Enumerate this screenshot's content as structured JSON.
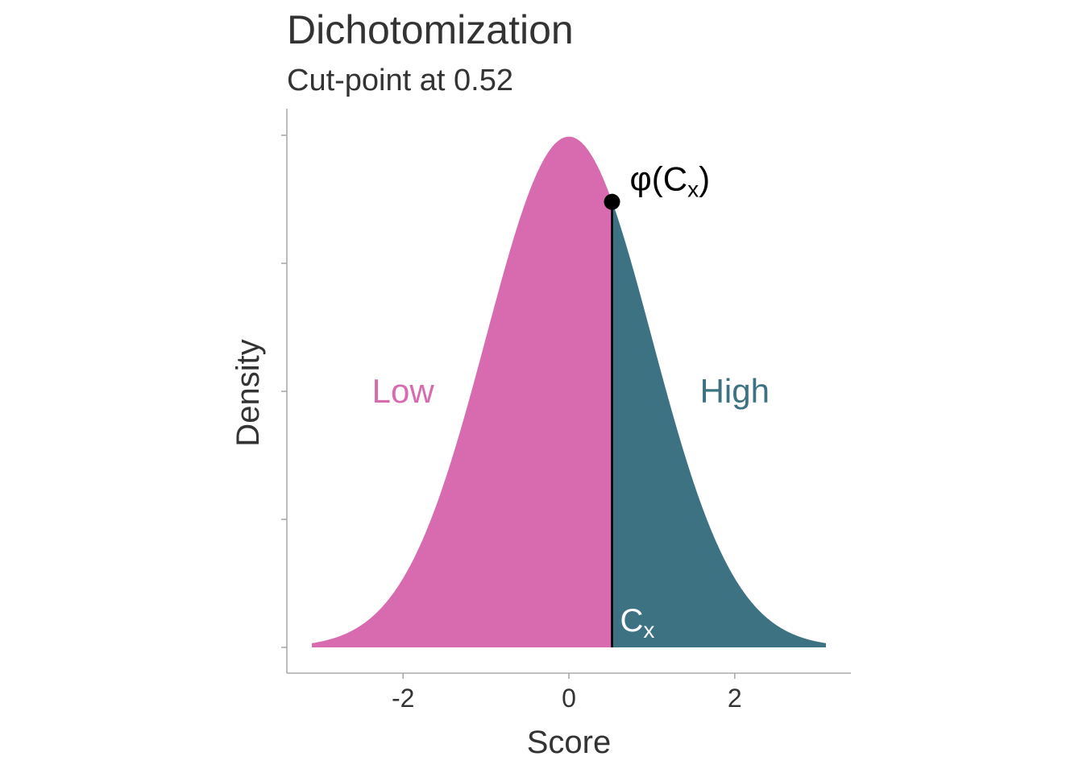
{
  "title": "Dichotomization",
  "subtitle": "Cut-point at 0.52",
  "colors": {
    "low": "#d86bb0",
    "high": "#3d7282",
    "axis": "#aaaaaa",
    "text": "#333333",
    "cut_line": "#000000"
  },
  "chart_data": {
    "type": "area",
    "title": "Dichotomization",
    "subtitle": "Cut-point at 0.52",
    "xlabel": "Score",
    "ylabel": "Density",
    "distribution": "standard-normal",
    "x_range": [
      -3.1,
      3.1
    ],
    "xlim": [
      -3.4,
      3.4
    ],
    "ylim": [
      -0.01,
      0.42
    ],
    "x_ticks": [
      -2,
      0,
      2
    ],
    "x_tick_labels": [
      "-2",
      "0",
      "2"
    ],
    "y_ticks": [
      0,
      0.1,
      0.2,
      0.3,
      0.4
    ],
    "y_tick_labels_shown": false,
    "cut_point": 0.52,
    "cut_density": 0.348,
    "regions": [
      {
        "name": "Low",
        "from": -3.1,
        "to": 0.52,
        "label_x": -2.0,
        "label_y": 0.2
      },
      {
        "name": "High",
        "from": 0.52,
        "to": 3.1,
        "label_x": 2.0,
        "label_y": 0.2
      }
    ],
    "annotations": {
      "point_label": "φ(C",
      "point_label_sub": "x",
      "point_label_close": ")",
      "cut_label": "C",
      "cut_label_sub": "x"
    },
    "grid": false,
    "legend": "none"
  }
}
